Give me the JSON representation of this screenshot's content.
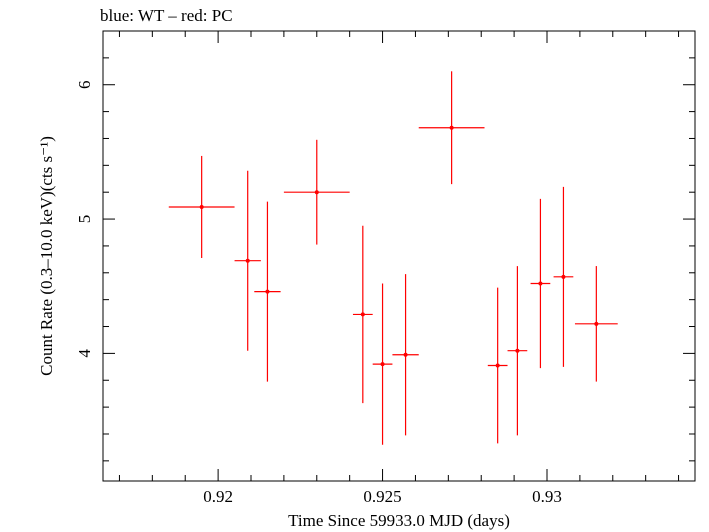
{
  "chart_data": {
    "type": "scatter",
    "title": "blue: WT – red: PC",
    "xlabel": "Time Since 59933.0 MJD (days)",
    "ylabel": "Count Rate (0.3–10.0 keV)(cts s⁻¹)",
    "xlim": [
      0.9165,
      0.9345
    ],
    "ylim": [
      3.05,
      6.4
    ],
    "x_ticks": [
      {
        "value": 0.92,
        "label": "0.92"
      },
      {
        "value": 0.925,
        "label": "0.925"
      },
      {
        "value": 0.93,
        "label": "0.93"
      }
    ],
    "y_ticks": [
      {
        "value": 4,
        "label": "4"
      },
      {
        "value": 5,
        "label": "5"
      },
      {
        "value": 6,
        "label": "6"
      }
    ],
    "x_minor_step": 0.001,
    "y_minor_step": 0.2,
    "grid": false,
    "series": [
      {
        "color": "#ff0000",
        "points": [
          {
            "x": 0.9195,
            "xerr": 0.001,
            "y": 5.09,
            "yerr_low": 0.38,
            "yerr_high": 0.38
          },
          {
            "x": 0.9209,
            "xerr": 0.0004,
            "y": 4.69,
            "yerr_low": 0.67,
            "yerr_high": 0.67
          },
          {
            "x": 0.9215,
            "xerr": 0.0004,
            "y": 4.46,
            "yerr_low": 0.67,
            "yerr_high": 0.67
          },
          {
            "x": 0.923,
            "xerr": 0.001,
            "y": 5.2,
            "yerr_low": 0.39,
            "yerr_high": 0.39
          },
          {
            "x": 0.9244,
            "xerr": 0.0003,
            "y": 4.29,
            "yerr_low": 0.66,
            "yerr_high": 0.66
          },
          {
            "x": 0.925,
            "xerr": 0.0003,
            "y": 3.92,
            "yerr_low": 0.6,
            "yerr_high": 0.6
          },
          {
            "x": 0.9257,
            "xerr": 0.0004,
            "y": 3.99,
            "yerr_low": 0.6,
            "yerr_high": 0.6
          },
          {
            "x": 0.9271,
            "xerr": 0.001,
            "y": 5.68,
            "yerr_low": 0.42,
            "yerr_high": 0.42
          },
          {
            "x": 0.9285,
            "xerr": 0.0003,
            "y": 3.91,
            "yerr_low": 0.58,
            "yerr_high": 0.58
          },
          {
            "x": 0.9291,
            "xerr": 0.0003,
            "y": 4.02,
            "yerr_low": 0.63,
            "yerr_high": 0.63
          },
          {
            "x": 0.9298,
            "xerr": 0.0003,
            "y": 4.52,
            "yerr_low": 0.63,
            "yerr_high": 0.63
          },
          {
            "x": 0.9305,
            "xerr": 0.0003,
            "y": 4.57,
            "yerr_low": 0.67,
            "yerr_high": 0.67
          },
          {
            "x": 0.9315,
            "xerr": 0.00065,
            "y": 4.22,
            "yerr_low": 0.43,
            "yerr_high": 0.43
          }
        ]
      }
    ]
  }
}
